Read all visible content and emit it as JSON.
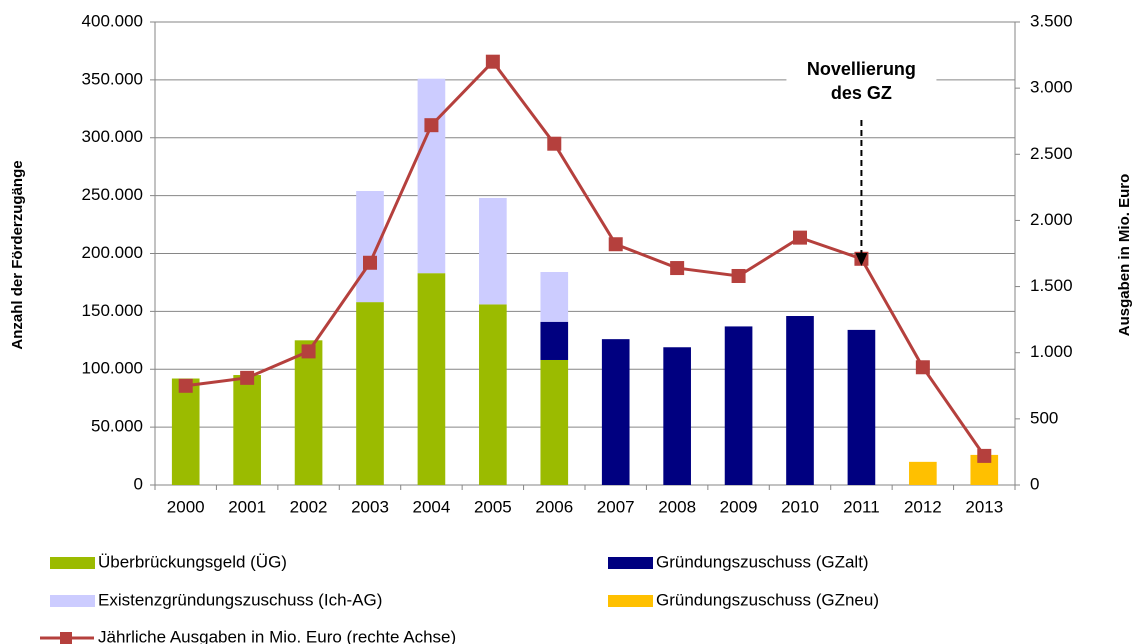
{
  "chart_data": {
    "type": "bar",
    "categories": [
      "2000",
      "2001",
      "2002",
      "2003",
      "2004",
      "2005",
      "2006",
      "2007",
      "2008",
      "2009",
      "2010",
      "2011",
      "2012",
      "2013"
    ],
    "y_label": "Anzahl der Förderzugänge",
    "y2_label": "Ausgaben in Mio. Euro",
    "annotation": {
      "lines": [
        "Novellierung",
        "des GZ"
      ],
      "category": 11.5
    },
    "ylim": [
      0,
      400000
    ],
    "yticks": [
      0,
      {
        "value": 50000,
        "label": "50.000"
      },
      {
        "value": 100000,
        "label": "100.000"
      },
      {
        "value": 150000,
        "label": "150.000"
      },
      {
        "value": 200000,
        "label": "200.000"
      },
      {
        "value": 250000,
        "label": "250.000"
      },
      {
        "value": 300000,
        "label": "300.000"
      },
      {
        "value": 350000,
        "label": "350.000"
      },
      {
        "value": 400000,
        "label": "400.000"
      }
    ],
    "y2lim": [
      0,
      3500
    ],
    "y2ticks": [
      0,
      500,
      {
        "value": 1000,
        "label": "1.000"
      },
      {
        "value": 1500,
        "label": "1.500"
      },
      {
        "value": 2000,
        "label": "2.000"
      },
      {
        "value": 2500,
        "label": "2.500"
      },
      {
        "value": 3000,
        "label": "3.000"
      },
      {
        "value": 3500,
        "label": "3.500"
      }
    ],
    "grid": true,
    "series": [
      {
        "name": "Überbrückungsgeld (ÜG)",
        "type": "bar",
        "color": "#9bbb00",
        "values": [
          92000,
          95000,
          125000,
          158000,
          183000,
          156000,
          108000,
          null,
          null,
          null,
          null,
          null,
          null,
          null
        ]
      },
      {
        "name": "Gründungszuschuss (GZalt)",
        "type": "bar",
        "color": "#000080",
        "values": [
          null,
          null,
          null,
          null,
          null,
          null,
          33000,
          126000,
          119000,
          137000,
          146000,
          134000,
          null,
          null
        ]
      },
      {
        "name": "Existenzgründungszuschuss (Ich-AG)",
        "type": "bar",
        "color": "#ccccff",
        "values": [
          null,
          null,
          null,
          96000,
          168000,
          92000,
          43000,
          null,
          null,
          null,
          null,
          null,
          null,
          null
        ]
      },
      {
        "name": "Gründungszuschuss (GZneu)",
        "type": "bar",
        "color": "#ffc000",
        "values": [
          null,
          null,
          null,
          null,
          null,
          null,
          null,
          null,
          null,
          null,
          null,
          null,
          20000,
          26000
        ]
      },
      {
        "name": "Jährliche Ausgaben in Mio. Euro (rechte Achse)",
        "type": "line",
        "axis": "y2",
        "color": "#b5403d",
        "values": [
          750,
          810,
          1010,
          1680,
          2720,
          3200,
          2580,
          1820,
          1640,
          1580,
          1870,
          1710,
          890,
          220
        ]
      }
    ]
  }
}
